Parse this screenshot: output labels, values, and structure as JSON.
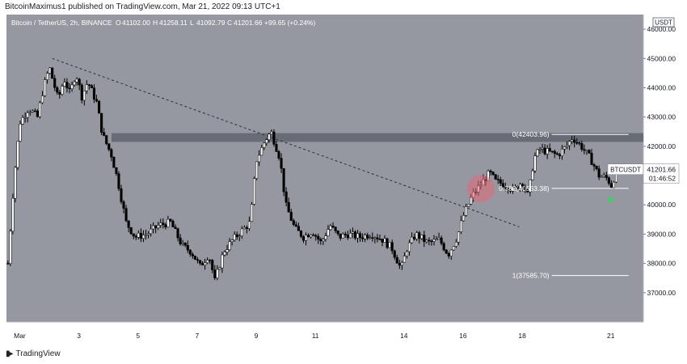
{
  "header": {
    "published": "BitcoinMaximus1 published on TradingView.com, Mar 21, 2022 09:13 UTC+1"
  },
  "footer": {
    "brand": "TradingView"
  },
  "colors": {
    "background": "#9598a1",
    "axis_bg": "#ffffff",
    "candle_up": "#ffffff",
    "candle_down": "#000000",
    "resistance_band": "#5a5e69",
    "highlight_circle": "#e46a7a",
    "arrow": "#2fdc57"
  },
  "chart_data": {
    "type": "candlestick",
    "title": "Bitcoin / TetherUS, 2h, BINANCE",
    "ohlc_readout": {
      "o_label": "O",
      "o": "41102.00",
      "h_label": "H",
      "h": "41258.11",
      "l_label": "L",
      "l": "41092.79",
      "c_label": "C",
      "c": "41201.66",
      "change": "+99.65 (+0.24%)"
    },
    "currency_label": "USDT",
    "ylim": [
      36000,
      46500
    ],
    "y_ticks": [
      "37000.00",
      "38000.00",
      "39000.00",
      "40000.00",
      "41000.00",
      "42000.00",
      "43000.00",
      "44000.00",
      "45000.00",
      "46000.00"
    ],
    "y_tick_values": [
      37000,
      38000,
      39000,
      40000,
      41000,
      42000,
      43000,
      44000,
      45000,
      46000
    ],
    "x_ticks": [
      "Mar",
      "3",
      "5",
      "7",
      "9",
      "11",
      "14",
      "16",
      "18",
      "21"
    ],
    "x_tick_days": [
      1,
      3,
      5,
      7,
      9,
      11,
      14,
      16,
      18,
      21
    ],
    "x_range_days": [
      0.55,
      22.1
    ],
    "price_tag": {
      "symbol": "BTCUSDT",
      "price": "41201.66",
      "countdown": "01:46:52"
    },
    "resistance_band": [
      42150,
      42450
    ],
    "trendline": {
      "start": [
        2.1,
        45000
      ],
      "end": [
        17.9,
        39250
      ]
    },
    "fibonacci": [
      {
        "label": "0(42403.96)",
        "level": 42403.96
      },
      {
        "label": "0.382(40563.38)",
        "level": 40563.38
      },
      {
        "label": "1(37585.70)",
        "level": 37585.7
      }
    ],
    "fib_x_range_days": [
      19.0,
      21.6
    ],
    "highlight_circle": {
      "day": 16.6,
      "price": 40550
    },
    "arrow": {
      "day": 21.0,
      "price": 40200,
      "direction": "up"
    },
    "price_path": [
      [
        0.6,
        38000
      ],
      [
        0.8,
        40800
      ],
      [
        1.0,
        42800
      ],
      [
        1.3,
        43300
      ],
      [
        1.6,
        43000
      ],
      [
        1.8,
        44000
      ],
      [
        2.0,
        44700
      ],
      [
        2.3,
        43600
      ],
      [
        2.5,
        44300
      ],
      [
        2.7,
        43800
      ],
      [
        2.9,
        44500
      ],
      [
        3.1,
        43700
      ],
      [
        3.3,
        44200
      ],
      [
        3.6,
        43500
      ],
      [
        3.8,
        42400
      ],
      [
        4.1,
        41700
      ],
      [
        4.3,
        40900
      ],
      [
        4.6,
        39400
      ],
      [
        4.9,
        38900
      ],
      [
        5.3,
        39000
      ],
      [
        5.7,
        39300
      ],
      [
        6.1,
        39400
      ],
      [
        6.5,
        38600
      ],
      [
        6.8,
        38400
      ],
      [
        7.1,
        37900
      ],
      [
        7.4,
        38300
      ],
      [
        7.6,
        37400
      ],
      [
        7.9,
        38400
      ],
      [
        8.2,
        38800
      ],
      [
        8.5,
        39100
      ],
      [
        8.8,
        39400
      ],
      [
        9.0,
        41500
      ],
      [
        9.3,
        42200
      ],
      [
        9.5,
        42500
      ],
      [
        9.8,
        41600
      ],
      [
        10.0,
        40000
      ],
      [
        10.3,
        39200
      ],
      [
        10.6,
        38900
      ],
      [
        10.9,
        39100
      ],
      [
        11.2,
        38700
      ],
      [
        11.5,
        39300
      ],
      [
        11.8,
        38900
      ],
      [
        12.1,
        39000
      ],
      [
        12.5,
        38900
      ],
      [
        12.9,
        39000
      ],
      [
        13.3,
        38800
      ],
      [
        13.6,
        38500
      ],
      [
        13.9,
        37800
      ],
      [
        14.1,
        38500
      ],
      [
        14.4,
        39000
      ],
      [
        14.8,
        38700
      ],
      [
        15.2,
        38800
      ],
      [
        15.5,
        38300
      ],
      [
        15.8,
        38900
      ],
      [
        16.0,
        39600
      ],
      [
        16.3,
        40300
      ],
      [
        16.6,
        40700
      ],
      [
        16.9,
        41100
      ],
      [
        17.1,
        40800
      ],
      [
        17.4,
        40700
      ],
      [
        17.7,
        40500
      ],
      [
        18.0,
        40800
      ],
      [
        18.2,
        40300
      ],
      [
        18.4,
        41600
      ],
      [
        18.6,
        41900
      ],
      [
        18.9,
        41800
      ],
      [
        19.2,
        41700
      ],
      [
        19.5,
        42000
      ],
      [
        19.7,
        42300
      ],
      [
        20.0,
        42000
      ],
      [
        20.3,
        41600
      ],
      [
        20.6,
        41000
      ],
      [
        20.9,
        40900
      ],
      [
        21.0,
        40600
      ],
      [
        21.2,
        41200
      ]
    ]
  }
}
